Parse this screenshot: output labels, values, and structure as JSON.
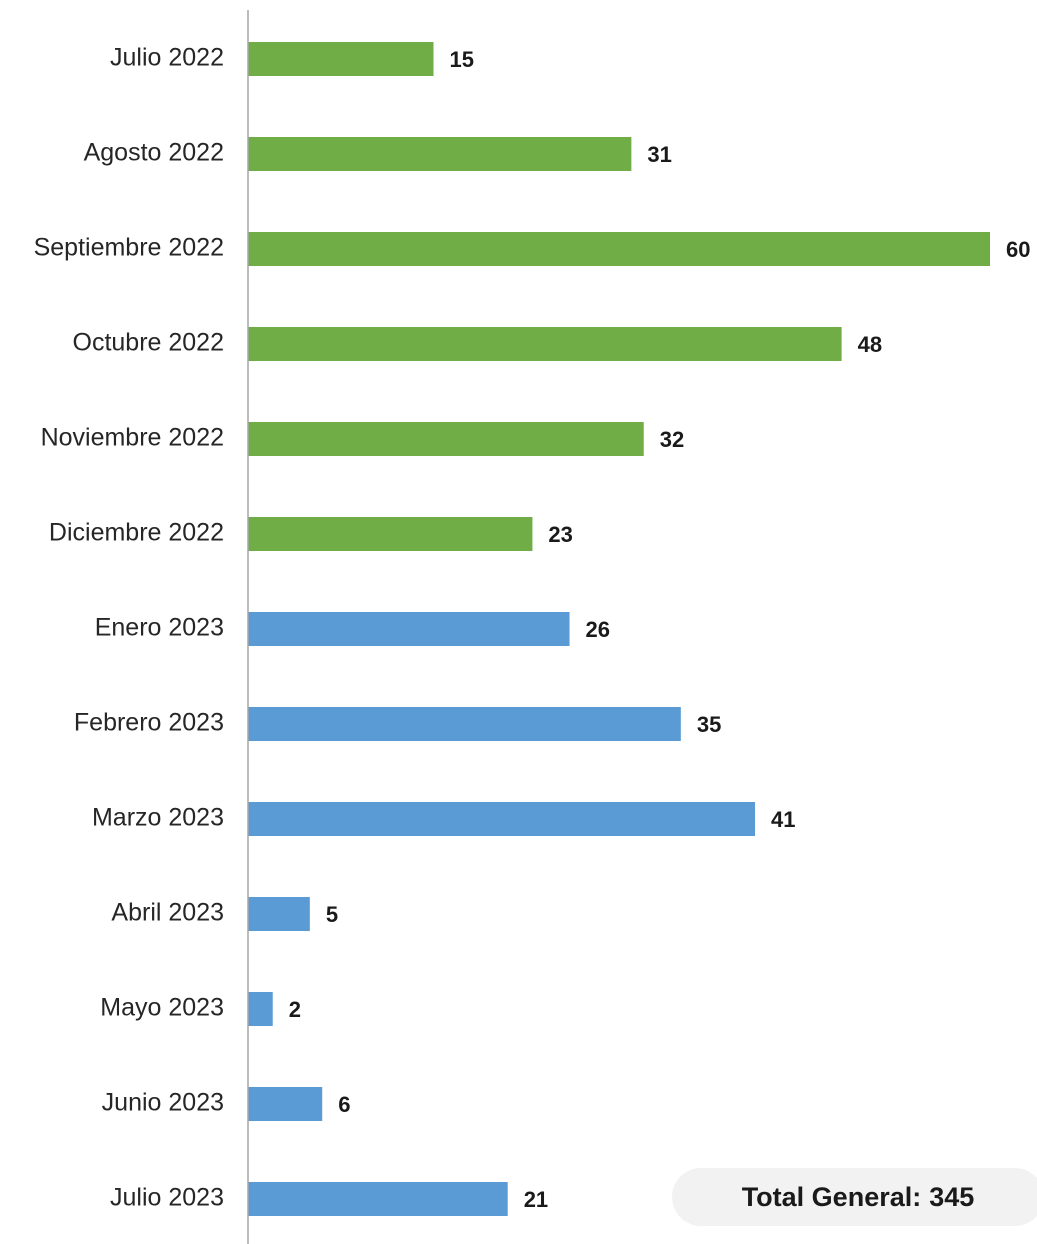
{
  "chart_data": {
    "type": "bar",
    "orientation": "horizontal",
    "categories": [
      "Julio 2022",
      "Agosto 2022",
      "Septiembre 2022",
      "Octubre 2022",
      "Noviembre 2022",
      "Diciembre 2022",
      "Enero 2023",
      "Febrero 2023",
      "Marzo 2023",
      "Abril 2023",
      "Mayo 2023",
      "Junio 2023",
      "Julio 2023"
    ],
    "values": [
      15,
      31,
      60,
      48,
      32,
      23,
      26,
      35,
      41,
      5,
      2,
      6,
      21
    ],
    "bar_colors": [
      "#70ad47",
      "#70ad47",
      "#70ad47",
      "#70ad47",
      "#70ad47",
      "#70ad47",
      "#5b9bd5",
      "#5b9bd5",
      "#5b9bd5",
      "#5b9bd5",
      "#5b9bd5",
      "#5b9bd5",
      "#5b9bd5"
    ],
    "title": "",
    "xlabel": "",
    "ylabel": "",
    "xlim": [
      0,
      60
    ],
    "grid": false,
    "legend": "none",
    "data_labels": true
  },
  "summary": {
    "label": "Total General:",
    "value": "345"
  },
  "colors": {
    "green_bars": "#70ad47",
    "blue_bars": "#5b9bd5",
    "axis": "#a6a6a6",
    "summary_bg": "#f2f2f2"
  }
}
